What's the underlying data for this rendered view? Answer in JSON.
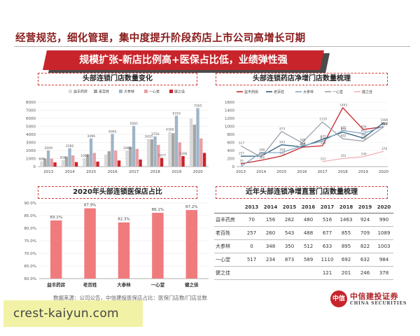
{
  "slide": {
    "title": "经营规范，细化管理，集中度提升阶段药店上市公司高增长可期",
    "banner": "规模扩张-新店比例高+医保占比低，业绩弹性强",
    "source": "数据来源：公司公告，中信建投医保店占比：医保门店数/门店总数",
    "watermark": "crest-kaiyun.com",
    "logo": {
      "cn": "中信建投证券",
      "en": "CHINA SECURITIES",
      "mark": "中信"
    }
  },
  "panels": {
    "store_count_title": "头部连锁门店数量变化",
    "net_growth_title": "头部连锁药店净增门店数量梳理",
    "medical_ratio_title": "2020年头部连锁医保店占比",
    "table_title": "近年头部连锁净增直营门店数量梳理"
  },
  "chart_data": [
    {
      "type": "bar",
      "title": "头部连锁门店数量变化",
      "categories": [
        "2013",
        "2014",
        "2015",
        "2016",
        "2017",
        "2018",
        "2019",
        "2020"
      ],
      "series": [
        {
          "name": "益丰药房",
          "color": "#d9d9d9",
          "values": [
            668,
            810,
            1062,
            1500,
            1985,
            3420,
            4300,
            5991
          ]
        },
        {
          "name": "老百姓",
          "color": "#a5a5a5",
          "values": [
            1000,
            1237,
            1527,
            1903,
            2448,
            3392,
            4153,
            5208
          ]
        },
        {
          "name": "大参林",
          "color": "#9fb5c8",
          "values": [
            2009,
            2282,
            3496,
            4065,
            5065,
            3750,
            6316,
            7265
          ]
        },
        {
          "name": "一心堂",
          "color": "#e8a0a5",
          "values": [
            1000,
            1400,
            1700,
            2000,
            2200,
            2700,
            3000,
            3500
          ]
        },
        {
          "name": "健之佳",
          "color": "#c8242b",
          "values": [
            520,
            560,
            620,
            760,
            880,
            1077,
            1306,
            1700
          ]
        }
      ],
      "ylim": [
        0,
        8000
      ],
      "yticks": [
        0,
        1000,
        2000,
        3000,
        4000,
        5000,
        6000,
        7000,
        8000
      ],
      "data_labels": [
        {
          "cat": "2013",
          "series": 2,
          "text": "2009"
        },
        {
          "cat": "2014",
          "series": 2,
          "text": "2282"
        },
        {
          "cat": "2015",
          "series": 2,
          "text": "3496"
        },
        {
          "cat": "2016",
          "series": 2,
          "text": "4065"
        },
        {
          "cat": "2017",
          "series": 2,
          "text": "5065"
        },
        {
          "cat": "2018",
          "series": 2,
          "text": "3750"
        },
        {
          "cat": "2019",
          "series": 2,
          "text": "6316"
        },
        {
          "cat": "2020",
          "series": 2,
          "text": "7265"
        },
        {
          "cat": "2013",
          "series": 0,
          "text": "668"
        },
        {
          "cat": "2014",
          "series": 0,
          "text": "810"
        },
        {
          "cat": "2015",
          "series": 0,
          "text": "1062"
        },
        {
          "cat": "2017",
          "series": 0,
          "text": "1985"
        },
        {
          "cat": "2018",
          "series": 0,
          "text": "3420"
        },
        {
          "cat": "2019",
          "series": 0,
          "text": "4300"
        },
        {
          "cat": "2018",
          "series": 4,
          "text": "1077"
        },
        {
          "cat": "2019",
          "series": 4,
          "text": "1306"
        }
      ],
      "legend_position": "top"
    },
    {
      "type": "line",
      "title": "头部连锁药店净增门店数量梳理",
      "categories": [
        "2013",
        "2014",
        "2015",
        "2016",
        "2017",
        "2018",
        "2019",
        "2020"
      ],
      "series": [
        {
          "name": "益丰药房",
          "color": "#c8242b",
          "values": [
            70,
            156,
            262,
            480,
            516,
            1463,
            924,
            990
          ]
        },
        {
          "name": "老百姓",
          "color": "#2e5f7a",
          "values": [
            257,
            260,
            543,
            488,
            677,
            855,
            709,
            1089
          ]
        },
        {
          "name": "大参林",
          "color": "#7fa6c6",
          "values": [
            0,
            348,
            350,
            512,
            633,
            895,
            822,
            1003
          ]
        },
        {
          "name": "一心堂",
          "color": "#9aa2ad",
          "values": [
            517,
            234,
            873,
            589,
            1110,
            692,
            632,
            984
          ]
        },
        {
          "name": "健之佳",
          "color": "#f0b2b6",
          "values": [
            null,
            null,
            null,
            null,
            121,
            201,
            246,
            378
          ]
        }
      ],
      "ylim": [
        0,
        1600
      ],
      "yticks": [
        0,
        200,
        400,
        600,
        800,
        1000,
        1200,
        1400,
        1600
      ],
      "legend_position": "top"
    },
    {
      "type": "bar",
      "title": "2020年头部连锁医保店占比",
      "categories": [
        "益丰药房",
        "老百姓",
        "大参林",
        "一心堂",
        "健之佳"
      ],
      "values": [
        83.1,
        87.9,
        82.3,
        86.1,
        87.2
      ],
      "labels": [
        "83.1%",
        "87.9%",
        "82.3%",
        "86.1%",
        "87.2%"
      ],
      "color": "#f07b7d",
      "ylim": [
        60,
        90
      ],
      "yticks": [
        "60.0%",
        "65.0%",
        "70.0%",
        "75.0%",
        "80.0%",
        "85.0%",
        "90.0%"
      ]
    },
    {
      "type": "table",
      "title": "近年头部连锁净增直营门店数量梳理",
      "columns": [
        "",
        "2013",
        "2014",
        "2015",
        "2016",
        "2017",
        "2018",
        "2019",
        "2020"
      ],
      "rows": [
        [
          "益丰药房",
          "70",
          "156",
          "262",
          "480",
          "516",
          "1463",
          "924",
          "990"
        ],
        [
          "老百姓",
          "257",
          "260",
          "543",
          "488",
          "677",
          "855",
          "709",
          "1089"
        ],
        [
          "大参林",
          "0",
          "348",
          "350",
          "512",
          "633",
          "895",
          "822",
          "1003"
        ],
        [
          "一心堂",
          "517",
          "234",
          "873",
          "589",
          "1110",
          "692",
          "632",
          "984"
        ],
        [
          "健之佳",
          "",
          "",
          "",
          "",
          "121",
          "201",
          "246",
          "378"
        ]
      ]
    }
  ]
}
